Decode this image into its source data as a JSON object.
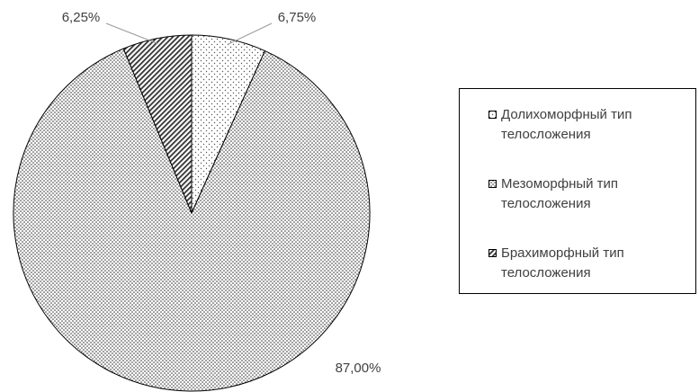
{
  "chart_data": {
    "type": "pie",
    "categories": [
      "Долихоморфный тип телосложения",
      "Мезоморфный тип телосложения",
      "Брахиморфный тип телосложения"
    ],
    "values": [
      6.75,
      87,
      6.25
    ],
    "value_labels": [
      "6,75%",
      "87,00%",
      "6,25%"
    ],
    "legend": "right"
  }
}
